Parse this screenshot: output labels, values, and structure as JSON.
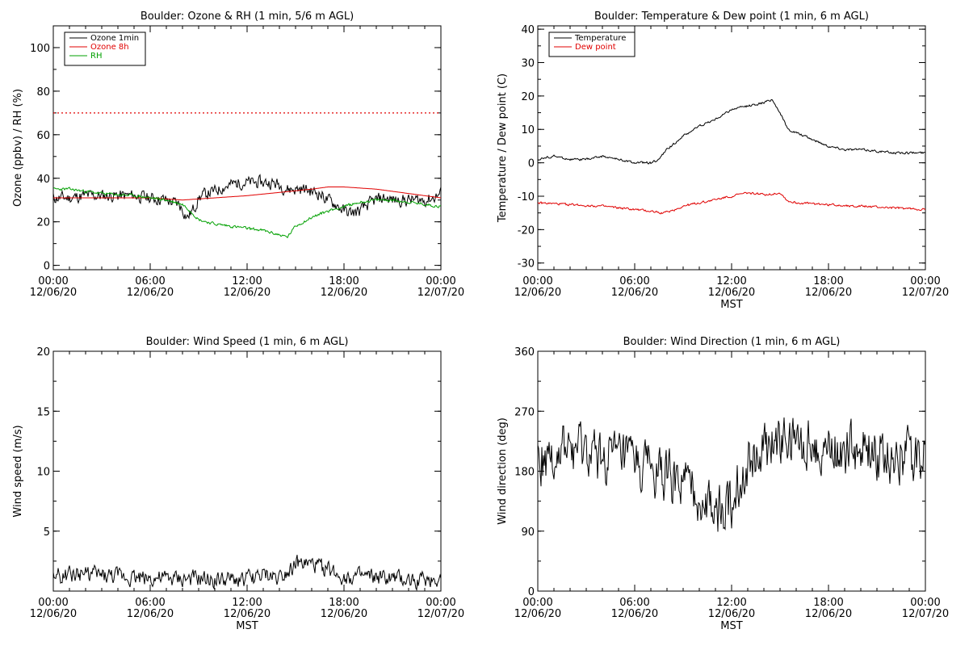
{
  "colors": {
    "black": "#000000",
    "red": "#e00000",
    "green": "#00a000"
  },
  "chart_data": [
    {
      "id": "ozone",
      "type": "line",
      "title": "Boulder: Ozone & RH (1 min, 5/6 m AGL)",
      "ylabel": "Ozone (ppbv) / RH (%)",
      "xlabel": "",
      "ylim": [
        -2,
        110
      ],
      "yticks": [
        0,
        20,
        40,
        60,
        80,
        100
      ],
      "xtick_times": [
        "00:00",
        "06:00",
        "12:00",
        "18:00",
        "00:00"
      ],
      "xtick_dates": [
        "12/06/20",
        "12/06/20",
        "12/06/20",
        "12/06/20",
        "12/07/20"
      ],
      "x_hours": [
        0,
        24
      ],
      "legend": {
        "placement": "top-left",
        "entries": [
          {
            "label": "Ozone 1min",
            "color": "#000000"
          },
          {
            "label": "Ozone 8h",
            "color": "#e00000"
          },
          {
            "label": "RH",
            "color": "#00a000"
          }
        ]
      },
      "reference_line": {
        "y": 70,
        "color": "#e00000",
        "style": "dotted"
      },
      "series": [
        {
          "name": "Ozone 1min",
          "color": "#000000",
          "noise": 2.5,
          "seed": 11,
          "x": [
            0,
            1,
            2,
            3,
            4,
            5,
            6,
            7,
            7.8,
            8.3,
            8.7,
            9,
            9.5,
            10,
            10.5,
            11,
            11.5,
            12,
            12.5,
            13,
            13.5,
            14,
            14.5,
            15,
            15.5,
            16,
            16.5,
            17,
            17.5,
            18,
            18.5,
            19,
            19.5,
            20,
            20.5,
            21,
            21.5,
            22,
            22.5,
            23,
            23.5,
            24
          ],
          "y": [
            31,
            31,
            32,
            32,
            32,
            32,
            31,
            30,
            28,
            22,
            26,
            31,
            33,
            34,
            36,
            37,
            38,
            38,
            38,
            38,
            38,
            37,
            35,
            35,
            35,
            34,
            33,
            30,
            28,
            25,
            24,
            25,
            28,
            30,
            31,
            30,
            30,
            30,
            30,
            30,
            31,
            33
          ]
        },
        {
          "name": "Ozone 8h",
          "color": "#e00000",
          "noise": 0,
          "seed": 0,
          "x": [
            0,
            3,
            6,
            8,
            9,
            10,
            12,
            14,
            16,
            17,
            18,
            20,
            22,
            24
          ],
          "y": [
            31,
            31,
            31,
            30,
            30.5,
            31,
            32,
            33.5,
            35,
            36,
            36,
            35,
            33,
            31
          ]
        },
        {
          "name": "RH",
          "color": "#00a000",
          "noise": 0.6,
          "seed": 23,
          "x": [
            0,
            1,
            2,
            3,
            5,
            6,
            7,
            8,
            8.5,
            9,
            10,
            11,
            12,
            13,
            14,
            14.5,
            15,
            16,
            17,
            18,
            19,
            20,
            21,
            22,
            23,
            24
          ],
          "y": [
            35,
            35,
            34,
            33,
            32,
            31,
            30,
            28,
            25,
            21,
            19,
            18,
            17,
            16,
            14,
            13,
            18,
            22,
            25,
            27,
            29,
            30,
            30,
            29,
            28,
            27
          ]
        }
      ]
    },
    {
      "id": "temp",
      "type": "line",
      "title": "Boulder: Temperature & Dew point (1 min, 6 m AGL)",
      "ylabel": "Temperature / Dew point (C)",
      "xlabel": "MST",
      "ylim": [
        -32,
        41
      ],
      "yticks": [
        -30,
        -20,
        -10,
        0,
        10,
        20,
        30,
        40
      ],
      "xtick_times": [
        "00:00",
        "06:00",
        "12:00",
        "18:00",
        "00:00"
      ],
      "xtick_dates": [
        "12/06/20",
        "12/06/20",
        "12/06/20",
        "12/06/20",
        "12/07/20"
      ],
      "x_hours": [
        0,
        24
      ],
      "legend": {
        "placement": "top-left",
        "entries": [
          {
            "label": "Temperature",
            "color": "#000000"
          },
          {
            "label": "Dew point",
            "color": "#e00000"
          }
        ]
      },
      "series": [
        {
          "name": "Temperature",
          "color": "#000000",
          "noise": 0.3,
          "seed": 5,
          "x": [
            0,
            1,
            2,
            3,
            4,
            5,
            6,
            7,
            7.5,
            8,
            9,
            10,
            11,
            12,
            13,
            14,
            14.5,
            15,
            15.5,
            16,
            17,
            18,
            19,
            20,
            21,
            22,
            23,
            24
          ],
          "y": [
            1,
            2,
            1,
            1,
            2,
            1,
            0,
            0,
            1,
            4,
            8,
            11,
            13,
            16,
            17,
            18,
            19,
            15,
            10,
            9,
            7,
            5,
            4,
            4,
            3.5,
            3,
            3,
            3
          ]
        },
        {
          "name": "Dew point",
          "color": "#e00000",
          "noise": 0.3,
          "seed": 9,
          "x": [
            0,
            2,
            4,
            6,
            7,
            7.8,
            8.5,
            9,
            10,
            11,
            12,
            13,
            14,
            15,
            15.5,
            16,
            18,
            20,
            22,
            24
          ],
          "y": [
            -12,
            -12.5,
            -13,
            -14,
            -14.5,
            -15,
            -14,
            -13,
            -12,
            -11,
            -10,
            -9,
            -9.5,
            -9,
            -11.5,
            -12,
            -12.5,
            -13,
            -13.5,
            -14
          ]
        }
      ]
    },
    {
      "id": "wspd",
      "type": "line",
      "title": "Boulder: Wind Speed (1 min, 6 m AGL)",
      "ylabel": "Wind speed (m/s)",
      "xlabel": "MST",
      "ylim": [
        0,
        20
      ],
      "yticks": [
        5,
        10,
        15,
        20
      ],
      "xtick_times": [
        "00:00",
        "06:00",
        "12:00",
        "18:00",
        "00:00"
      ],
      "xtick_dates": [
        "12/06/20",
        "12/06/20",
        "12/06/20",
        "12/06/20",
        "12/07/20"
      ],
      "x_hours": [
        0,
        24
      ],
      "series": [
        {
          "name": "",
          "color": "#000000",
          "noise": 0.6,
          "seed": 31,
          "x": [
            0,
            2,
            3,
            5,
            7,
            9,
            11,
            12,
            13,
            14,
            15,
            16,
            17,
            18,
            20,
            22,
            24
          ],
          "y": [
            1.2,
            1.5,
            1.3,
            1.2,
            1.0,
            1.0,
            0.9,
            1.0,
            1.3,
            1.2,
            2.3,
            2.2,
            1.8,
            1.2,
            1.1,
            0.9,
            1.0
          ]
        }
      ]
    },
    {
      "id": "wdir",
      "type": "line",
      "title": "Boulder: Wind Direction (1 min, 6 m AGL)",
      "ylabel": "Wind direction (deg)",
      "xlabel": "MST",
      "ylim": [
        0,
        360
      ],
      "yticks": [
        0,
        90,
        180,
        270,
        360
      ],
      "xtick_times": [
        "00:00",
        "06:00",
        "12:00",
        "18:00",
        "00:00"
      ],
      "xtick_dates": [
        "12/06/20",
        "12/06/20",
        "12/06/20",
        "12/06/20",
        "12/07/20"
      ],
      "x_hours": [
        0,
        24
      ],
      "series": [
        {
          "name": "",
          "color": "#000000",
          "noise": 35,
          "seed": 47,
          "x": [
            0,
            2,
            4,
            5,
            6,
            7,
            8,
            9,
            10,
            11,
            12,
            12.8,
            13.3,
            14,
            15,
            16,
            17,
            18,
            19,
            20,
            21,
            22,
            23,
            24
          ],
          "y": [
            200,
            210,
            200,
            200,
            195,
            180,
            170,
            160,
            140,
            120,
            130,
            180,
            200,
            210,
            225,
            225,
            225,
            205,
            210,
            215,
            205,
            200,
            205,
            210
          ]
        }
      ]
    }
  ]
}
